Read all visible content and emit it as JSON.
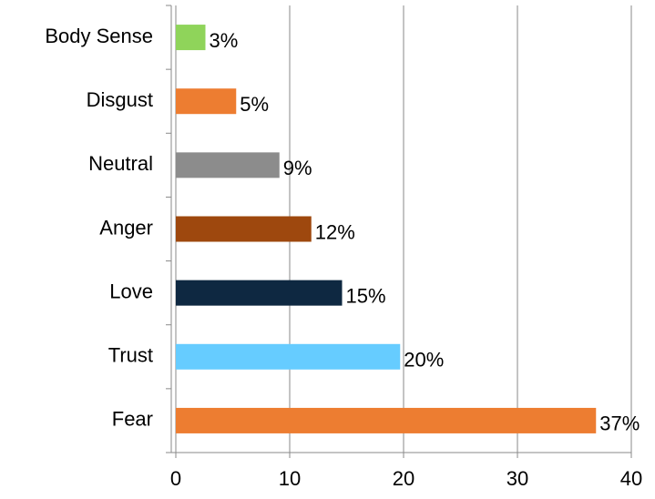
{
  "chart_data": {
    "type": "bar",
    "categories": [
      "Body Sense",
      "Disgust",
      "Neutral",
      "Anger",
      "Love",
      "Trust",
      "Fear"
    ],
    "values": [
      2.6,
      5.3,
      9.1,
      11.9,
      14.6,
      19.7,
      36.9
    ],
    "value_labels": [
      "3%",
      "5%",
      "9%",
      "12%",
      "15%",
      "20%",
      "37%"
    ],
    "colors": [
      "#8fd45a",
      "#ed7d31",
      "#8c8c8c",
      "#9e480e",
      "#0e2841",
      "#66ccff",
      "#ed7d31"
    ],
    "xlim": [
      0,
      40
    ],
    "xticks": [
      0,
      10,
      20,
      30,
      40
    ],
    "grid": true
  }
}
